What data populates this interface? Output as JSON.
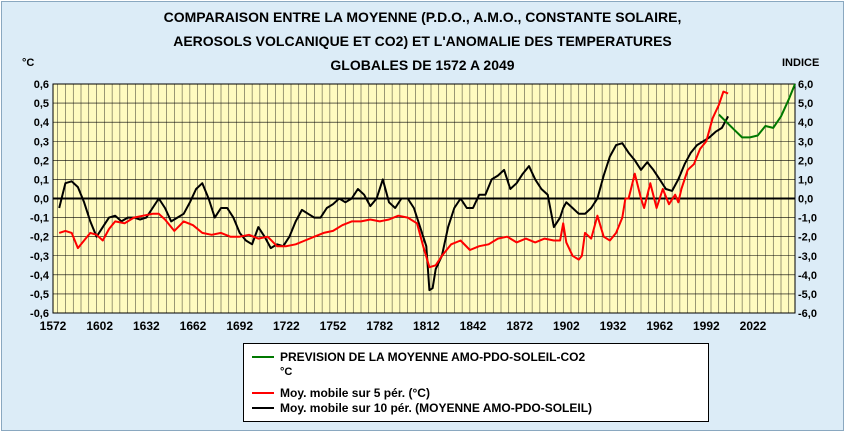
{
  "title_lines": [
    "COMPARAISON ENTRE LA MOYENNE  (P.D.O., A.M.O., CONSTANTE SOLAIRE,",
    "AEROSOLS VOLCANIQUE ET CO2) ET L'ANOMALIE DES TEMPERATURES",
    "GLOBALES DE 1572 A 2049"
  ],
  "left_unit": "°C",
  "right_unit": "INDICE",
  "colors": {
    "plot_bg": "#fffbc0",
    "grid": "#000000",
    "green": "#007800",
    "red": "#ff0000",
    "black": "#000000",
    "outer_bg": "#dcecf7"
  },
  "chart_data": {
    "type": "line",
    "title": "COMPARAISON ENTRE LA MOYENNE  (P.D.O., A.M.O., CONSTANTE SOLAIRE, AEROSOLS VOLCANIQUE ET CO2) ET L'ANOMALIE DES TEMPERATURES GLOBALES DE 1572 A 2049",
    "xlim": [
      1572,
      2049
    ],
    "ylim": [
      -0.6,
      0.6
    ],
    "y2lim": [
      -6.0,
      6.0
    ],
    "grid": true,
    "legend_position": "bottom",
    "x_ticks": [
      "1572",
      "1602",
      "1632",
      "1662",
      "1692",
      "1722",
      "1752",
      "1782",
      "1812",
      "1842",
      "1872",
      "1902",
      "1932",
      "1962",
      "1992",
      "2022"
    ],
    "y_ticks": [
      "0,6",
      "0,5",
      "0,4",
      "0,3",
      "0,2",
      "0,1",
      "0,0",
      "-0,1",
      "-0,2",
      "-0,3",
      "-0,4",
      "-0,5",
      "-0,6"
    ],
    "y2_ticks": [
      "6,0",
      "5,0",
      "4,0",
      "3,0",
      "2,0",
      "1,0",
      "0,0",
      "-1,0",
      "-2,0",
      "-3,0",
      "-4,0",
      "-5,0",
      "-6,0"
    ],
    "series": [
      {
        "name": "PREVISION DE LA MOYENNE AMO-PDO-SOLEIL-CO2",
        "sub_unit": "°C",
        "color": "#007800",
        "x": [
          2000,
          2005,
          2010,
          2015,
          2020,
          2025,
          2030,
          2035,
          2040,
          2045,
          2049
        ],
        "y": [
          0.44,
          0.4,
          0.36,
          0.32,
          0.32,
          0.33,
          0.38,
          0.37,
          0.43,
          0.52,
          0.6
        ]
      },
      {
        "name": "Moy. mobile sur 5 pér. (°C)",
        "color": "#ff0000",
        "x": [
          1576,
          1580,
          1584,
          1588,
          1592,
          1596,
          1600,
          1604,
          1608,
          1612,
          1618,
          1624,
          1630,
          1636,
          1640,
          1644,
          1650,
          1656,
          1662,
          1668,
          1674,
          1680,
          1686,
          1692,
          1698,
          1704,
          1710,
          1716,
          1722,
          1728,
          1734,
          1740,
          1746,
          1752,
          1758,
          1764,
          1770,
          1776,
          1782,
          1788,
          1794,
          1800,
          1806,
          1810,
          1814,
          1818,
          1822,
          1828,
          1834,
          1840,
          1846,
          1852,
          1858,
          1864,
          1870,
          1876,
          1882,
          1888,
          1894,
          1898,
          1900,
          1902,
          1906,
          1910,
          1912,
          1914,
          1918,
          1922,
          1926,
          1930,
          1934,
          1938,
          1940,
          1942,
          1946,
          1950,
          1952,
          1956,
          1960,
          1964,
          1968,
          1972,
          1974,
          1976,
          1980,
          1984,
          1988,
          1992,
          1996,
          2000,
          2003,
          2006
        ],
        "y": [
          -0.18,
          -0.17,
          -0.18,
          -0.26,
          -0.22,
          -0.18,
          -0.19,
          -0.22,
          -0.16,
          -0.12,
          -0.13,
          -0.1,
          -0.09,
          -0.08,
          -0.08,
          -0.11,
          -0.17,
          -0.12,
          -0.14,
          -0.18,
          -0.19,
          -0.18,
          -0.2,
          -0.2,
          -0.19,
          -0.21,
          -0.2,
          -0.25,
          -0.25,
          -0.24,
          -0.22,
          -0.2,
          -0.18,
          -0.17,
          -0.14,
          -0.12,
          -0.12,
          -0.11,
          -0.12,
          -0.11,
          -0.09,
          -0.1,
          -0.13,
          -0.25,
          -0.36,
          -0.35,
          -0.3,
          -0.24,
          -0.22,
          -0.27,
          -0.25,
          -0.24,
          -0.21,
          -0.2,
          -0.23,
          -0.21,
          -0.23,
          -0.21,
          -0.22,
          -0.22,
          -0.13,
          -0.23,
          -0.3,
          -0.32,
          -0.3,
          -0.18,
          -0.21,
          -0.09,
          -0.2,
          -0.22,
          -0.18,
          -0.1,
          0.0,
          0.0,
          0.13,
          0.0,
          -0.05,
          0.08,
          -0.05,
          0.05,
          -0.03,
          0.02,
          -0.02,
          0.05,
          0.15,
          0.18,
          0.26,
          0.3,
          0.42,
          0.49,
          0.56,
          0.55
        ]
      },
      {
        "name": "Moy. mobile sur 10 pér. (MOYENNE AMO-PDO-SOLEIL)",
        "color": "#000000",
        "x": [
          1576,
          1580,
          1584,
          1588,
          1592,
          1596,
          1600,
          1604,
          1608,
          1612,
          1616,
          1620,
          1624,
          1628,
          1632,
          1636,
          1640,
          1644,
          1648,
          1652,
          1656,
          1660,
          1664,
          1668,
          1672,
          1676,
          1680,
          1684,
          1688,
          1692,
          1696,
          1700,
          1704,
          1708,
          1712,
          1716,
          1720,
          1724,
          1728,
          1732,
          1736,
          1740,
          1744,
          1748,
          1752,
          1756,
          1760,
          1764,
          1768,
          1772,
          1776,
          1780,
          1784,
          1788,
          1792,
          1796,
          1800,
          1804,
          1808,
          1812,
          1814,
          1816,
          1818,
          1822,
          1826,
          1830,
          1834,
          1838,
          1842,
          1846,
          1850,
          1854,
          1858,
          1862,
          1866,
          1870,
          1874,
          1878,
          1882,
          1886,
          1890,
          1894,
          1898,
          1900,
          1902,
          1906,
          1910,
          1914,
          1918,
          1922,
          1926,
          1930,
          1934,
          1938,
          1942,
          1946,
          1950,
          1954,
          1958,
          1962,
          1966,
          1970,
          1974,
          1978,
          1982,
          1986,
          1990,
          1994,
          1998,
          2002,
          2006
        ],
        "y": [
          -0.05,
          0.08,
          0.09,
          0.06,
          -0.02,
          -0.12,
          -0.2,
          -0.15,
          -0.1,
          -0.09,
          -0.12,
          -0.1,
          -0.1,
          -0.11,
          -0.1,
          -0.05,
          0.0,
          -0.05,
          -0.12,
          -0.1,
          -0.08,
          -0.02,
          0.05,
          0.08,
          0.0,
          -0.1,
          -0.05,
          -0.05,
          -0.1,
          -0.18,
          -0.22,
          -0.24,
          -0.15,
          -0.2,
          -0.26,
          -0.24,
          -0.25,
          -0.2,
          -0.12,
          -0.06,
          -0.08,
          -0.1,
          -0.1,
          -0.05,
          -0.03,
          0.0,
          -0.02,
          0.0,
          0.05,
          0.02,
          -0.04,
          0.0,
          0.1,
          -0.02,
          -0.05,
          0.0,
          0.0,
          -0.05,
          -0.15,
          -0.25,
          -0.48,
          -0.47,
          -0.37,
          -0.3,
          -0.15,
          -0.05,
          0.0,
          -0.05,
          -0.05,
          0.02,
          0.02,
          0.1,
          0.12,
          0.15,
          0.05,
          0.08,
          0.13,
          0.17,
          0.1,
          0.05,
          0.02,
          -0.15,
          -0.1,
          -0.05,
          -0.02,
          -0.05,
          -0.08,
          -0.08,
          -0.05,
          0.0,
          0.12,
          0.22,
          0.28,
          0.29,
          0.24,
          0.2,
          0.15,
          0.19,
          0.15,
          0.1,
          0.05,
          0.04,
          0.1,
          0.18,
          0.24,
          0.28,
          0.3,
          0.32,
          0.35,
          0.37,
          0.43
        ]
      }
    ]
  }
}
